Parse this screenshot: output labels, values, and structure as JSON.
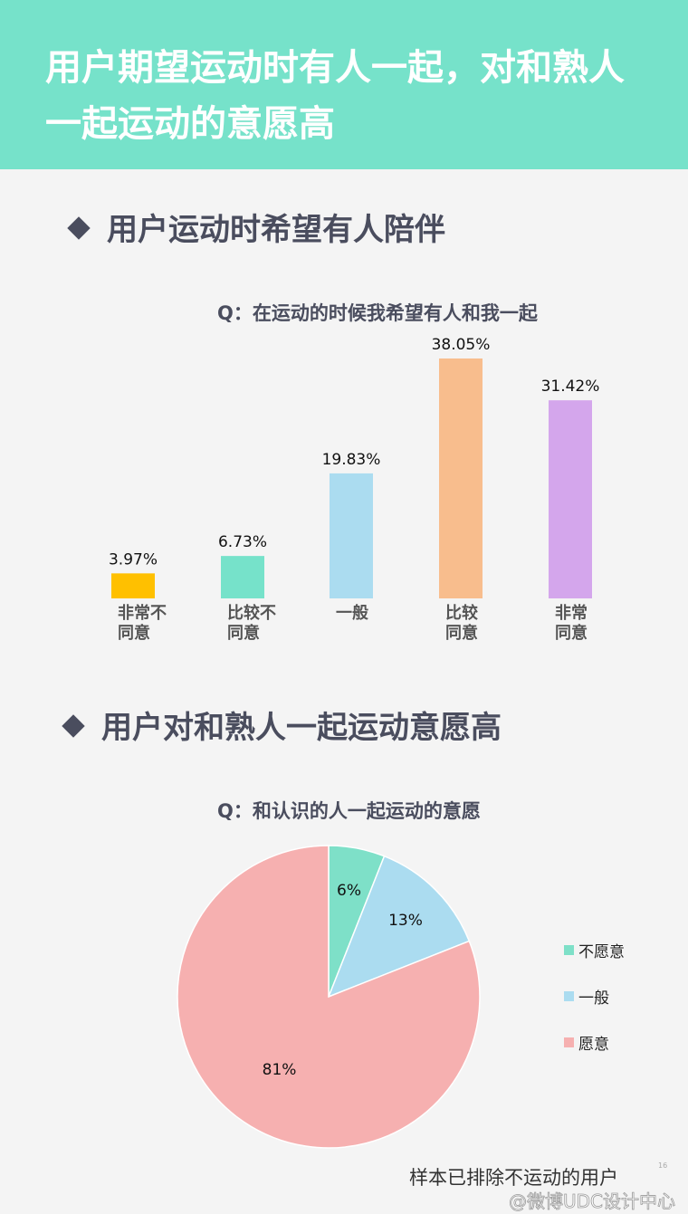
{
  "header": {
    "title_line1": "用户期望运动时有人一起，对和熟人",
    "title_line2": "一起运动的意愿高",
    "bg_color": "#76e2ca"
  },
  "section1": {
    "title": "用户运动时希望有人陪伴"
  },
  "section2": {
    "title": "用户对和熟人一起运动意愿高"
  },
  "footer": {
    "note": "样本已排除不运动的用户",
    "page_number": "16",
    "watermark": "@微博UDC设计中心"
  },
  "chart_data": [
    {
      "type": "bar",
      "title": "Q：在运动的时候我希望有人和我一起",
      "categories": [
        [
          "非常不",
          "同意"
        ],
        [
          "比较不",
          "同意"
        ],
        [
          "一般"
        ],
        [
          "比较",
          "同意"
        ],
        [
          "非常",
          "同意"
        ]
      ],
      "values": [
        3.97,
        6.73,
        19.83,
        38.05,
        31.42
      ],
      "value_labels": [
        "3.97%",
        "6.73%",
        "19.83%",
        "38.05%",
        "31.42%"
      ],
      "colors": [
        "#ffc000",
        "#76e2ca",
        "#abdcf0",
        "#f8bd8d",
        "#d4a6ec"
      ],
      "grid": false,
      "legend": "none"
    },
    {
      "type": "pie",
      "title": "Q：和认识的人一起运动的意愿",
      "labels": [
        "不愿意",
        "一般",
        "愿意"
      ],
      "values": [
        6,
        13,
        81
      ],
      "value_labels": [
        "6%",
        "13%",
        "81%"
      ],
      "colors": [
        "#7ee0c8",
        "#abdcf0",
        "#f6b0b0"
      ],
      "legend": "right"
    }
  ]
}
